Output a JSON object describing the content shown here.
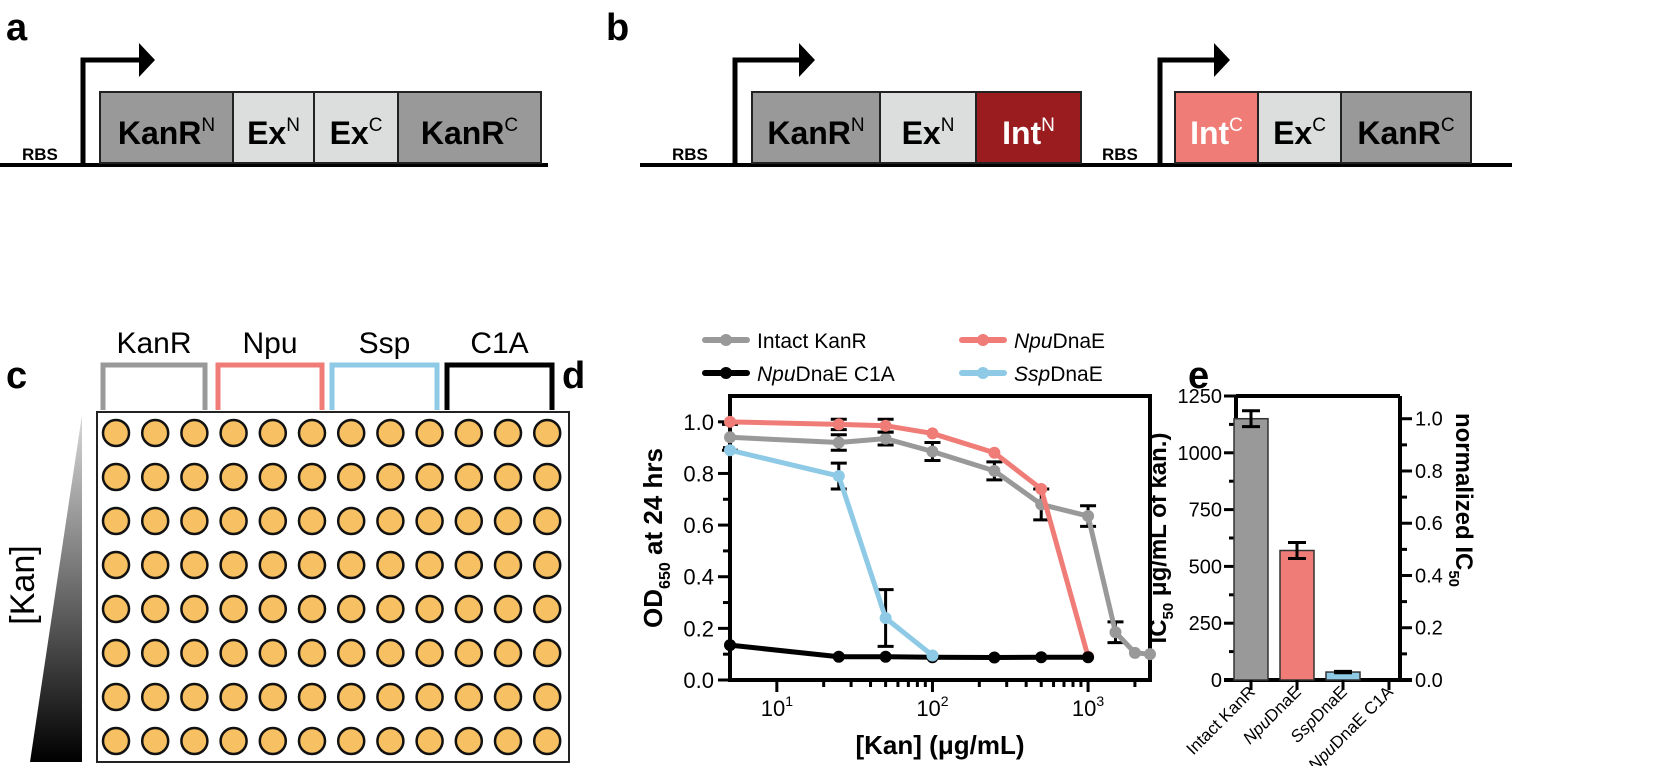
{
  "panel_labels": {
    "a": "a",
    "b": "b",
    "c": "c",
    "d": "d",
    "e": "e"
  },
  "construct_a": {
    "rbs": "RBS",
    "parts": [
      {
        "name": "KanR",
        "sup": "N",
        "fill": "#999999",
        "text_color": "#000000"
      },
      {
        "name": "Ex",
        "sup": "N",
        "fill": "#dcdedd",
        "text_color": "#000000"
      },
      {
        "name": "Ex",
        "sup": "C",
        "fill": "#dcdedd",
        "text_color": "#000000"
      },
      {
        "name": "KanR",
        "sup": "C",
        "fill": "#999999",
        "text_color": "#000000"
      }
    ]
  },
  "construct_b": {
    "cassettes": [
      {
        "rbs": "RBS",
        "parts": [
          {
            "name": "KanR",
            "sup": "N",
            "fill": "#999999",
            "text_color": "#000000"
          },
          {
            "name": "Ex",
            "sup": "N",
            "fill": "#dcdedd",
            "text_color": "#000000"
          },
          {
            "name": "Int",
            "sup": "N",
            "fill": "#9b1c1f",
            "text_color": "#ffffff"
          }
        ]
      },
      {
        "rbs": "RBS",
        "parts": [
          {
            "name": "Int",
            "sup": "C",
            "fill": "#f07c78",
            "text_color": "#ffffff"
          },
          {
            "name": "Ex",
            "sup": "C",
            "fill": "#dcdedd",
            "text_color": "#000000"
          },
          {
            "name": "KanR",
            "sup": "C",
            "fill": "#999999",
            "text_color": "#000000"
          }
        ]
      }
    ]
  },
  "plate": {
    "groups": [
      {
        "label": "KanR",
        "color": "#999999"
      },
      {
        "label": "Npu",
        "color": "#f07c78"
      },
      {
        "label": "Ssp",
        "color": "#8ecae6"
      },
      {
        "label": "C1A",
        "color": "#000000"
      }
    ],
    "rows": 8,
    "cols": 12,
    "well_color": "#f7c063",
    "gradient_label": "[Kan]"
  },
  "chart_data": [
    {
      "panel": "d",
      "type": "line",
      "x_scale": "log",
      "xlim": [
        5,
        2500
      ],
      "ylim": [
        0,
        1.1
      ],
      "xlabel": "[Kan] (μg/mL)",
      "ylabel": {
        "main": "OD",
        "sub": "650",
        "rest": " at  24 hrs"
      },
      "yticks": [
        "0.0",
        "0.2",
        "0.4",
        "0.6",
        "0.8",
        "1.0"
      ],
      "xticks": [
        {
          "base": "10",
          "exp": "1"
        },
        {
          "base": "10",
          "exp": "2"
        },
        {
          "base": "10",
          "exp": "3"
        }
      ],
      "legend_placement": "top",
      "series": [
        {
          "legend": {
            "italic": "",
            "plain": "Intact KanR"
          },
          "color": "#999999",
          "x": [
            5,
            25,
            50,
            100,
            250,
            500,
            1000,
            1500,
            2000,
            2500
          ],
          "y": [
            0.94,
            0.92,
            0.935,
            0.885,
            0.81,
            0.68,
            0.635,
            0.185,
            0.105,
            0.1
          ],
          "err": [
            0.05,
            0.03,
            0.025,
            0.035,
            0.035,
            0.06,
            0.04,
            0.04,
            0,
            0
          ]
        },
        {
          "legend": {
            "italic": "Npu",
            "plain": "DnaE"
          },
          "color": "#f07c78",
          "x": [
            5,
            25,
            50,
            100,
            250,
            500,
            1000
          ],
          "y": [
            1.0,
            0.99,
            0.985,
            0.955,
            0.88,
            0.74,
            0.09
          ],
          "err": [
            0,
            0.02,
            0.025,
            0,
            0,
            0,
            0
          ]
        },
        {
          "legend": {
            "italic": "Npu",
            "plain": "DnaE C1A"
          },
          "color": "#000000",
          "x": [
            5,
            25,
            50,
            100,
            250,
            500,
            1000
          ],
          "y": [
            0.135,
            0.09,
            0.09,
            0.088,
            0.087,
            0.088,
            0.088
          ],
          "err": [
            0,
            0,
            0,
            0,
            0,
            0,
            0
          ]
        },
        {
          "legend": {
            "italic": "Ssp",
            "plain": "DnaE"
          },
          "color": "#8ecae6",
          "x": [
            5,
            25,
            50,
            100
          ],
          "y": [
            0.89,
            0.79,
            0.24,
            0.095
          ],
          "err": [
            0,
            0.05,
            0.11,
            0
          ]
        }
      ]
    },
    {
      "panel": "e",
      "type": "bar",
      "categories": [
        {
          "italic": "",
          "plain": "Intact KanR"
        },
        {
          "italic": "Npu",
          "plain": "DnaE"
        },
        {
          "italic": "Ssp",
          "plain": "DnaE"
        },
        {
          "italic": "Npu",
          "plain": "DnaE C1A"
        }
      ],
      "values": [
        1150,
        570,
        35,
        0
      ],
      "err": [
        35,
        35,
        3,
        0
      ],
      "colors": [
        "#999999",
        "#f07c78",
        "#8ecae6",
        "#000000"
      ],
      "ylim": [
        0,
        1250
      ],
      "yticks": [
        "0",
        "250",
        "500",
        "750",
        "1000",
        "1250"
      ],
      "y2lim": [
        0,
        1.087
      ],
      "y2ticks": [
        "0.0",
        "0.2",
        "0.4",
        "0.6",
        "0.8",
        "1.0"
      ],
      "ylabel": {
        "main": "IC",
        "sub": "50",
        "rest": " μg/mL of kan.)"
      },
      "y2label": {
        "main": "normalized IC",
        "sub": "50"
      }
    }
  ]
}
